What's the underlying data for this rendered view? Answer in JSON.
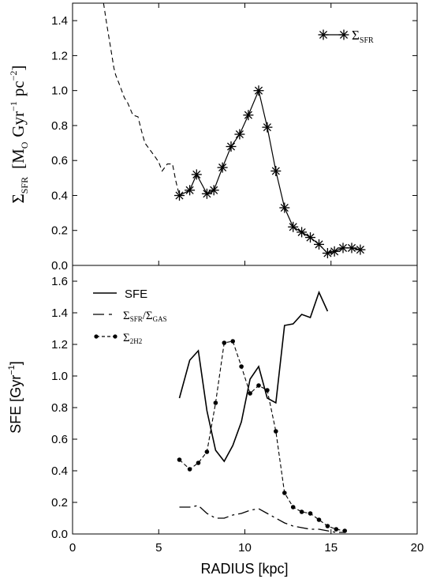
{
  "chart_data": [
    {
      "panel": "top",
      "type": "line",
      "ylabel_symbol": "Σ",
      "ylabel_sub": "SFR",
      "ylabel_unit_main": "[M",
      "ylabel_unit_sub": "O",
      "ylabel_unit_rest": "Gyr",
      "ylabel_unit_exp1": "−1",
      "ylabel_unit_pc": "pc",
      "ylabel_unit_exp2": "−2",
      "ylabel_unit_close": "]",
      "xlim": [
        0,
        20
      ],
      "ylim": [
        0,
        1.5
      ],
      "yticks": [
        "0.0",
        "0.2",
        "0.4",
        "0.6",
        "0.8",
        "1.0",
        "1.2",
        "1.4"
      ],
      "legend": {
        "symbol": "Σ",
        "sub": "SFR",
        "placement": "top-right"
      },
      "series": [
        {
          "name": "ΣSFR",
          "style": "dashed",
          "x": [
            1.8,
            2.0,
            2.2,
            2.4,
            2.5,
            2.7,
            3.0,
            3.2,
            3.5,
            3.8,
            4.0,
            4.2,
            4.5,
            4.8,
            5.0,
            5.2,
            5.5,
            5.8,
            6.0,
            6.2
          ],
          "y": [
            1.5,
            1.37,
            1.25,
            1.13,
            1.09,
            1.04,
            0.96,
            0.93,
            0.86,
            0.85,
            0.77,
            0.7,
            0.66,
            0.62,
            0.59,
            0.54,
            0.58,
            0.58,
            0.48,
            0.4
          ]
        },
        {
          "name": "ΣSFR",
          "style": "solid-star",
          "x": [
            6.2,
            6.8,
            7.2,
            7.8,
            8.2,
            8.7,
            9.2,
            9.7,
            10.2,
            10.8,
            11.3,
            11.8,
            12.3,
            12.8,
            13.3,
            13.8,
            14.3,
            14.8,
            15.2,
            15.7,
            16.2,
            16.7
          ],
          "y": [
            0.4,
            0.43,
            0.52,
            0.41,
            0.43,
            0.56,
            0.68,
            0.75,
            0.86,
            1.0,
            0.79,
            0.54,
            0.33,
            0.22,
            0.19,
            0.16,
            0.12,
            0.07,
            0.08,
            0.1,
            0.1,
            0.09
          ]
        }
      ]
    },
    {
      "panel": "bottom",
      "type": "line",
      "xlabel": "RADIUS  [kpc]",
      "ylabel_main": "SFE  [Gyr",
      "ylabel_exp": "−1",
      "ylabel_close": "]",
      "xlim": [
        0,
        20
      ],
      "ylim": [
        0,
        1.7
      ],
      "xticks": [
        "0",
        "5",
        "10",
        "15",
        "20"
      ],
      "yticks": [
        "0.0",
        "0.2",
        "0.4",
        "0.6",
        "0.8",
        "1.0",
        "1.2",
        "1.4",
        "1.6"
      ],
      "legend_placement": "top-left",
      "series": [
        {
          "name": "SFE",
          "style": "solid",
          "x": [
            6.2,
            6.8,
            7.3,
            7.8,
            8.3,
            8.8,
            9.3,
            9.8,
            10.3,
            10.8,
            11.3,
            11.8,
            12.3,
            12.8,
            13.3,
            13.8,
            14.3,
            14.8
          ],
          "y": [
            0.86,
            1.1,
            1.16,
            0.78,
            0.53,
            0.46,
            0.56,
            0.71,
            0.98,
            1.06,
            0.86,
            0.83,
            1.32,
            1.33,
            1.39,
            1.37,
            1.53,
            1.41
          ]
        },
        {
          "name": "ΣSFR/ΣGAS",
          "legend_a": "Σ",
          "legend_a_sub": "SFR",
          "legend_slash": "/Σ",
          "legend_b_sub": "GAS",
          "style": "dash-dot",
          "x": [
            6.2,
            6.8,
            7.3,
            7.8,
            8.3,
            8.8,
            9.3,
            9.8,
            10.3,
            10.8,
            11.3,
            11.8,
            12.3,
            12.8,
            13.3,
            13.8,
            14.3,
            14.8,
            15.3,
            15.8
          ],
          "y": [
            0.17,
            0.17,
            0.18,
            0.13,
            0.1,
            0.1,
            0.12,
            0.13,
            0.15,
            0.16,
            0.13,
            0.1,
            0.07,
            0.05,
            0.04,
            0.03,
            0.03,
            0.02,
            0.01,
            0.01
          ]
        },
        {
          "name": "Σ2H2",
          "legend_a": "Σ",
          "legend_a_sub": "2H2",
          "style": "dashed-dot-marker",
          "x": [
            6.2,
            6.8,
            7.3,
            7.8,
            8.3,
            8.8,
            9.3,
            9.8,
            10.3,
            10.8,
            11.3,
            11.8,
            12.3,
            12.8,
            13.3,
            13.8,
            14.3,
            14.8,
            15.3,
            15.8
          ],
          "y": [
            0.47,
            0.41,
            0.45,
            0.52,
            0.83,
            1.21,
            1.22,
            1.06,
            0.89,
            0.94,
            0.91,
            0.65,
            0.26,
            0.17,
            0.14,
            0.13,
            0.09,
            0.05,
            0.03,
            0.02
          ]
        }
      ]
    }
  ]
}
